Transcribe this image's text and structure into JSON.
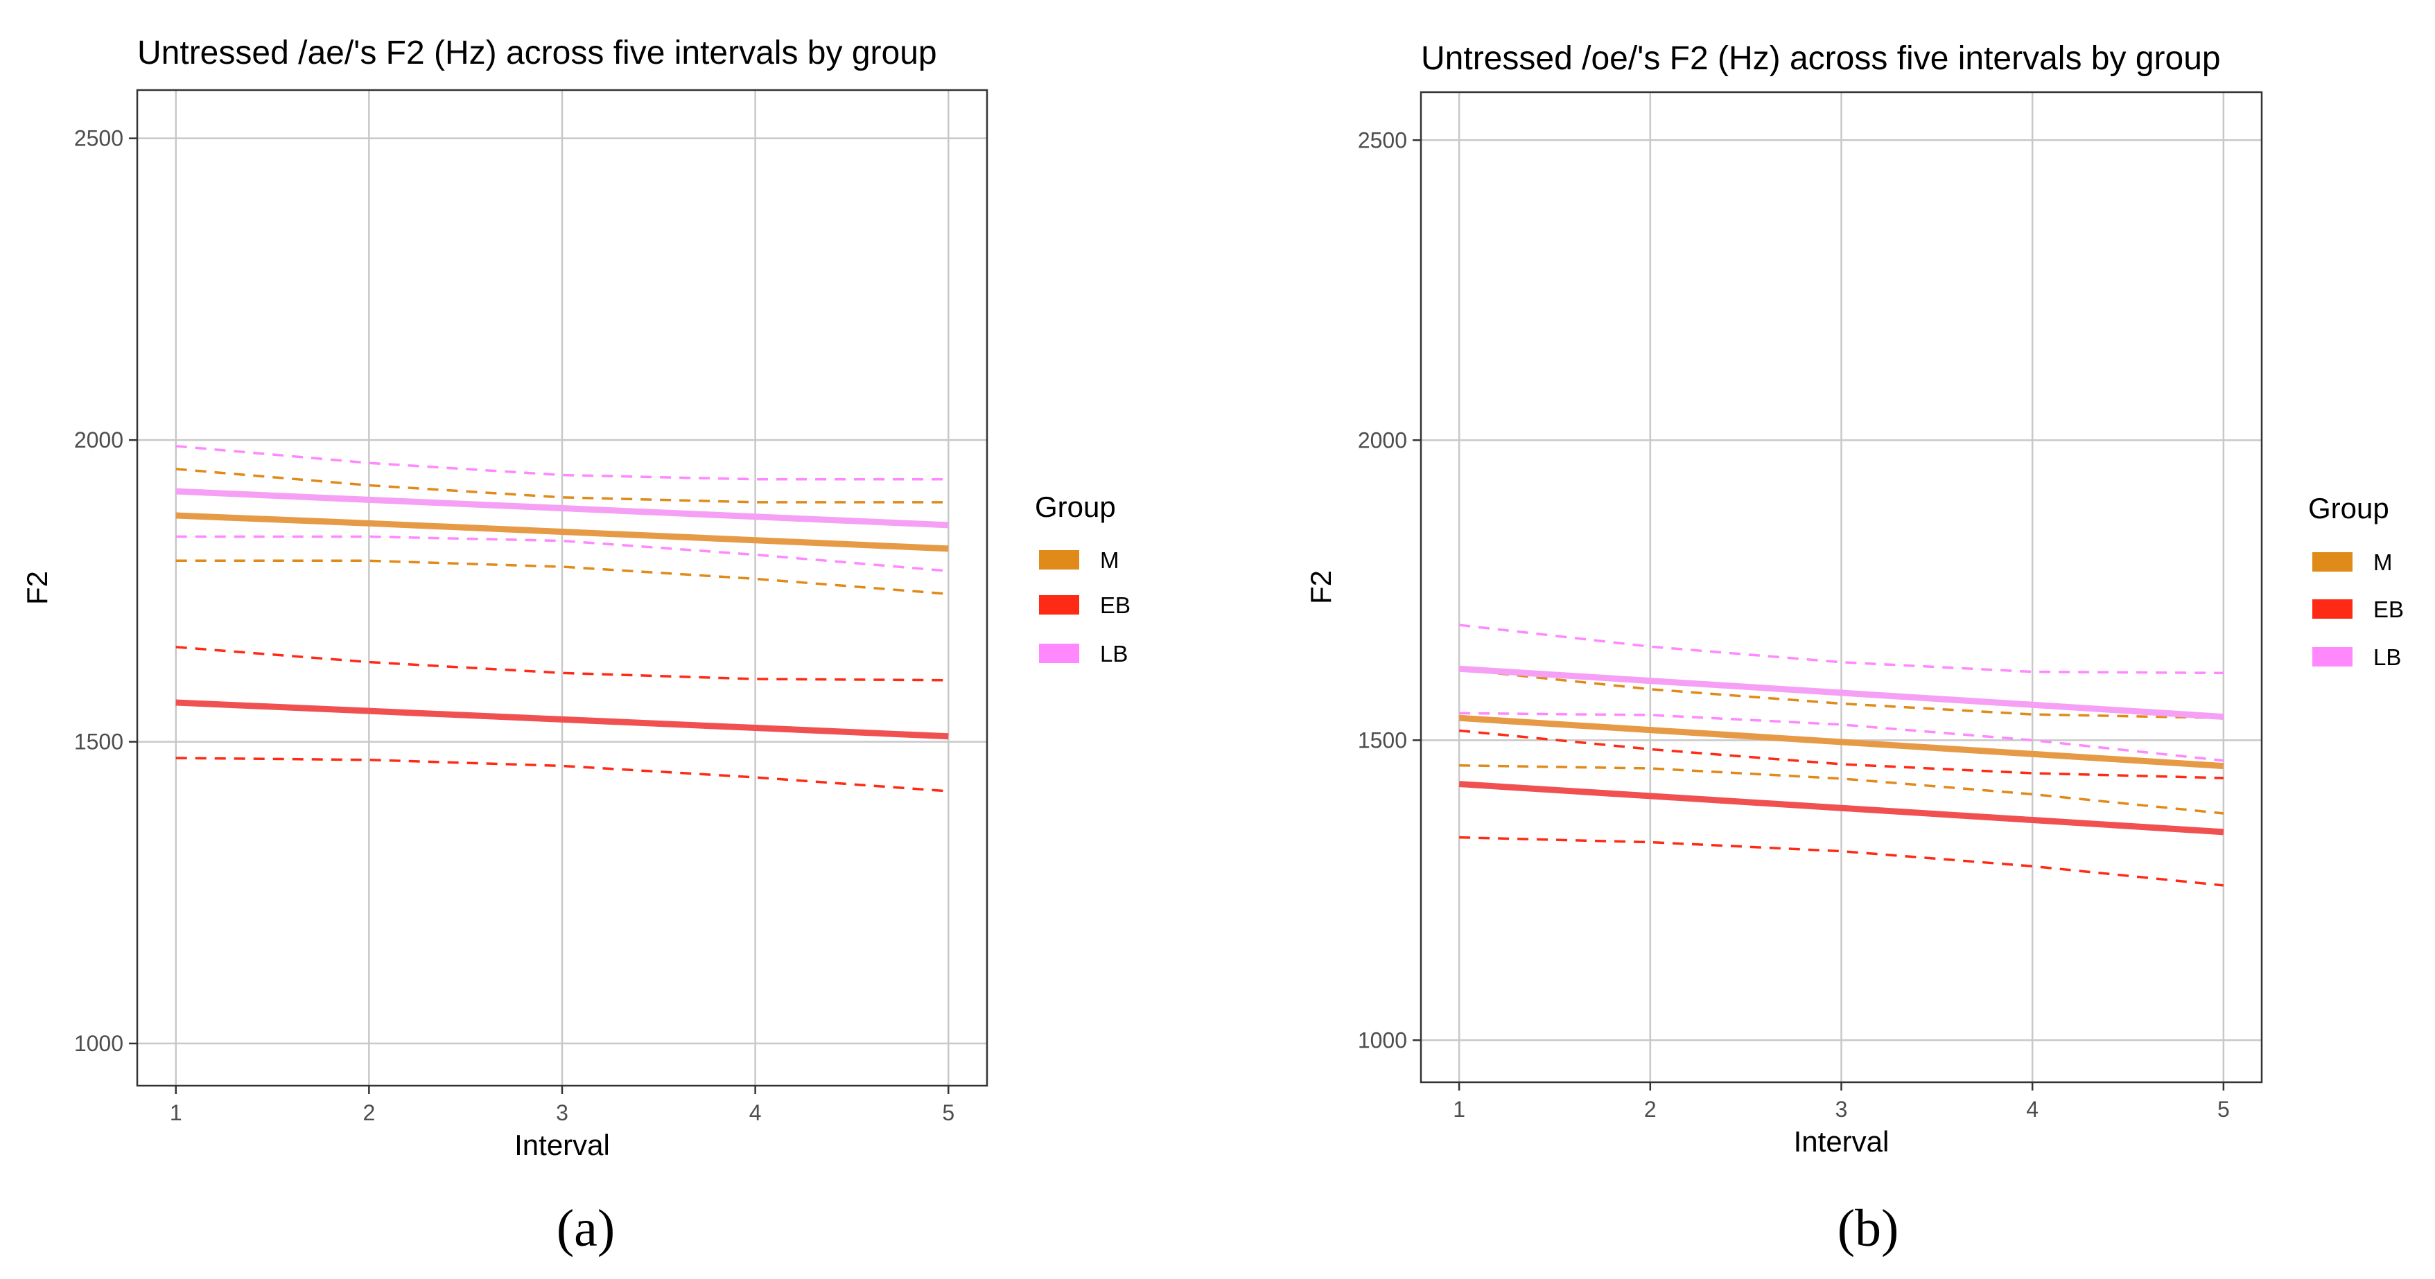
{
  "chart_data": [
    {
      "type": "line",
      "title": "Untressed /ae/'s F2 (Hz) across five intervals by group",
      "xlabel": "Interval",
      "ylabel": "F2",
      "x": [
        1,
        2,
        3,
        4,
        5
      ],
      "xticks": [
        "1",
        "2",
        "3",
        "4",
        "5"
      ],
      "yticks": [
        "1000",
        "1500",
        "2000",
        "2500"
      ],
      "xlim": [
        0.8,
        5.2
      ],
      "ylim": [
        930,
        2580
      ],
      "grid": true,
      "legend_title": "Group",
      "legend_position": "right",
      "caption": "(a)",
      "series": [
        {
          "name": "M",
          "color": "#e69a45",
          "values": [
            1875,
            1862,
            1848,
            1834,
            1820
          ],
          "lower": [
            1800,
            1800,
            1790,
            1770,
            1745
          ],
          "upper": [
            1952,
            1925,
            1905,
            1897,
            1897
          ]
        },
        {
          "name": "EB",
          "color": "#f05050",
          "values": [
            1565,
            1551,
            1537,
            1523,
            1509
          ],
          "lower": [
            1473,
            1470,
            1460,
            1441,
            1418
          ],
          "upper": [
            1657,
            1632,
            1614,
            1604,
            1602
          ]
        },
        {
          "name": "LB",
          "color": "#f5a0f5",
          "values": [
            1915,
            1901,
            1887,
            1873,
            1859
          ],
          "lower": [
            1840,
            1840,
            1833,
            1810,
            1783
          ],
          "upper": [
            1990,
            1962,
            1942,
            1935,
            1935
          ]
        }
      ]
    },
    {
      "type": "line",
      "title": "Untressed /oe/'s F2 (Hz) across five intervals by group",
      "xlabel": "Interval",
      "ylabel": "F2",
      "x": [
        1,
        2,
        3,
        4,
        5
      ],
      "xticks": [
        "1",
        "2",
        "3",
        "4",
        "5"
      ],
      "yticks": [
        "1000",
        "1500",
        "2000",
        "2500"
      ],
      "xlim": [
        0.8,
        5.2
      ],
      "ylim": [
        930,
        2580
      ],
      "grid": true,
      "legend_title": "Group",
      "legend_position": "right",
      "caption": "(b)",
      "series": [
        {
          "name": "M",
          "color": "#e69a45",
          "values": [
            1537,
            1517,
            1497,
            1477,
            1457
          ],
          "lower": [
            1458,
            1453,
            1436,
            1410,
            1378
          ],
          "upper": [
            1618,
            1585,
            1561,
            1543,
            1537
          ]
        },
        {
          "name": "EB",
          "color": "#f05050",
          "values": [
            1427,
            1407,
            1387,
            1367,
            1347
          ],
          "lower": [
            1338,
            1330,
            1315,
            1290,
            1258
          ],
          "upper": [
            1516,
            1485,
            1460,
            1445,
            1437
          ]
        },
        {
          "name": "LB",
          "color": "#f5a0f5",
          "values": [
            1619,
            1599,
            1579,
            1559,
            1539
          ],
          "lower": [
            1545,
            1542,
            1526,
            1500,
            1466
          ],
          "upper": [
            1692,
            1656,
            1630,
            1614,
            1612
          ]
        }
      ]
    }
  ],
  "legend": {
    "title": "Group",
    "items": [
      {
        "label": "M",
        "color": "#e08a1a"
      },
      {
        "label": "EB",
        "color": "#ff2a15"
      },
      {
        "label": "LB",
        "color": "#ff88ff"
      }
    ]
  }
}
